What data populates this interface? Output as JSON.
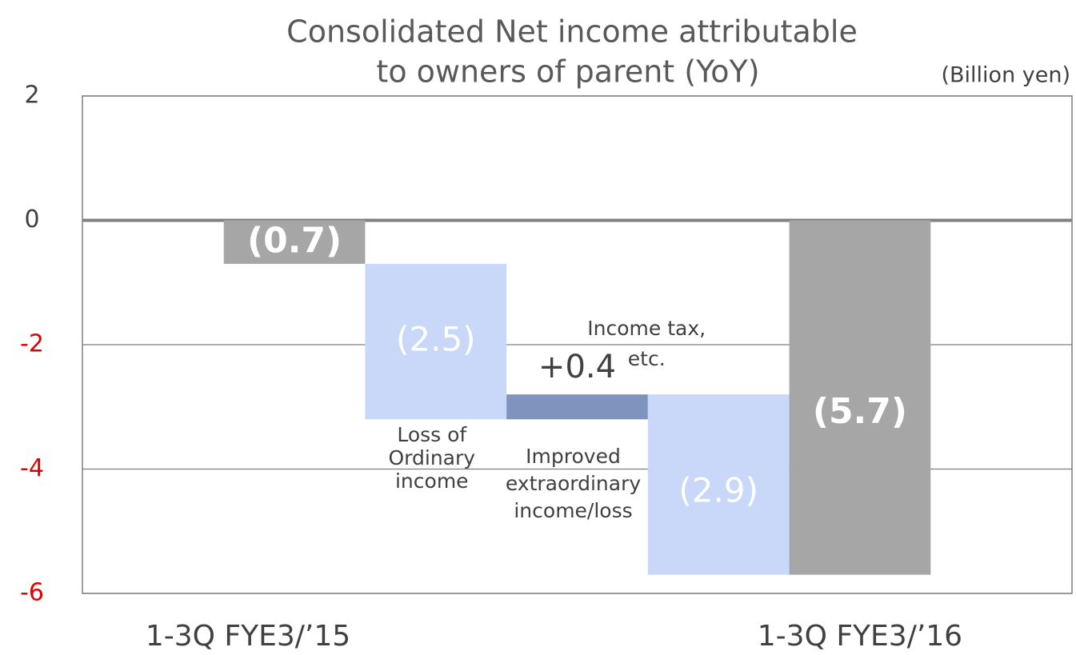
{
  "chart_data": {
    "type": "waterfall",
    "title": [
      "Consolidated Net income attributable",
      "to owners of parent (YoY)"
    ],
    "unit_label": "(Billion yen)",
    "categories": [
      "1-3Q FYE3/’15",
      null,
      null,
      null,
      "1-3Q FYE3/’16"
    ],
    "values": [
      -0.7,
      -2.5,
      0.4,
      -2.9,
      -5.7
    ],
    "value_labels": [
      "(0.7)",
      "(2.5)",
      "+0.4",
      "(2.9)",
      "(5.7)"
    ],
    "totals": [
      true,
      false,
      false,
      false,
      true
    ],
    "colors": [
      "#a6a6a6",
      "#c9d7f8",
      "#7f93bf",
      "#c9d7f8",
      "#a6a6a6"
    ],
    "annotations": [
      null,
      [
        "Loss of",
        "Ordinary",
        "income"
      ],
      [
        "Improved",
        "extraordinary",
        "income/loss"
      ],
      [
        "Income tax,",
        "etc."
      ],
      null
    ],
    "ylim": [
      -6,
      2
    ],
    "yticks": [
      -6,
      -4,
      -2,
      0,
      2
    ],
    "negative_tick_color": "#e00000",
    "grid": true
  }
}
